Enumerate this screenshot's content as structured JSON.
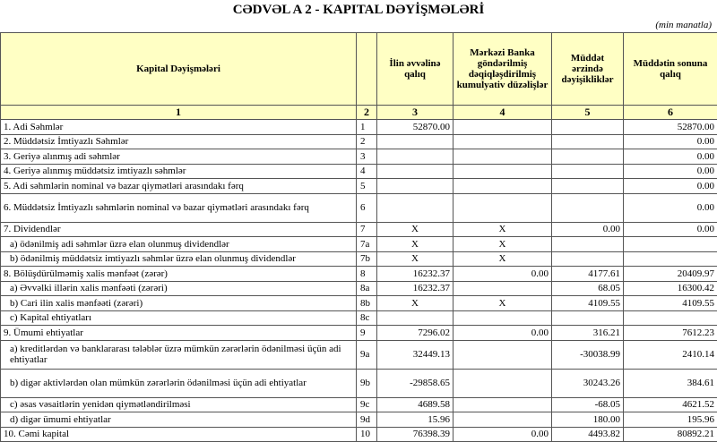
{
  "header": {
    "title": "CƏDVƏL A 2 - KAPITAL DƏYİŞMƏLƏRİ",
    "unit": "(min manatla)"
  },
  "table": {
    "columns": [
      "Kapital Dəyişmələri",
      "",
      "İlin əvvəlinə qalıq",
      "Mərkəzi Banka göndərilmiş dəqiqləşdirilmiş kumulyativ düzəlişlər",
      "Müddət ərzində dəyişikliklər",
      "Müddətin sonuna qalıq"
    ],
    "column_numbers": [
      "1",
      "2",
      "3",
      "4",
      "5",
      "6"
    ],
    "rows": [
      [
        "1. Adi Səhmlər",
        "1",
        "52870.00",
        null,
        null,
        "52870.00"
      ],
      [
        "2. Müddətsiz İmtiyazlı Səhmlər",
        "2",
        null,
        null,
        null,
        "0.00"
      ],
      [
        "3. Geriyə alınmış adi səhmlər",
        "3",
        null,
        null,
        null,
        "0.00"
      ],
      [
        "4. Geriyə alınmış müddətsiz imtiyazlı səhmlər",
        "4",
        null,
        null,
        null,
        "0.00"
      ],
      [
        "5. Adi səhmlərin nominal və bazar qiymətləri arasındakı fərq",
        "5",
        null,
        null,
        null,
        "0.00"
      ],
      [
        "6. Müddətsiz İmtiyazlı səhmlərin nominal və bazar qiymətləri arasındakı fərq",
        "6",
        null,
        null,
        null,
        "0.00"
      ],
      [
        "7. Dividendlər",
        "7",
        "X",
        "X",
        "0.00",
        "0.00"
      ],
      [
        "a) ödənilmiş adi səhmlər üzrə elan olunmuş dividendlər",
        "7a",
        "X",
        "X",
        null,
        null
      ],
      [
        "b) ödənilmiş müddətsiz imtiyazlı səhmlər üzrə elan olunmuş dividendlər",
        "7b",
        "X",
        "X",
        null,
        null
      ],
      [
        "8. Bölüşdürülməmiş xalis mənfəət (zərər)",
        "8",
        "16232.37",
        "0.00",
        "4177.61",
        "20409.97"
      ],
      [
        "a) Əvvəlki illərin xalis mənfəəti (zərəri)",
        "8a",
        "16232.37",
        null,
        "68.05",
        "16300.42"
      ],
      [
        "b) Cari ilin xalis mənfəəti (zərəri)",
        "8b",
        "X",
        "X",
        "4109.55",
        "4109.55"
      ],
      [
        "c) Kapital ehtiyatları",
        "8c",
        null,
        null,
        null,
        null
      ],
      [
        "9. Ümumi ehtiyatlar",
        "9",
        "7296.02",
        "0.00",
        "316.21",
        "7612.23"
      ],
      [
        "a) kreditlərdən və banklararası  tələblər üzrə mümkün zərərlərin ödənilməsi üçün adi ehtiyatlar",
        "9a",
        "32449.13",
        null,
        "-30038.99",
        "2410.14"
      ],
      [
        "b) digər aktivlərdən olan mümkün zərərlərin ödənilməsi üçün adi ehtiyatlar",
        "9b",
        "-29858.65",
        null,
        "30243.26",
        "384.61"
      ],
      [
        "c) əsas vəsaitlərin yenidən qiymətləndirilməsi",
        "9c",
        "4689.58",
        null,
        "-68.05",
        "4621.52"
      ],
      [
        "d) digər ümumi ehtiyatlar",
        "9d",
        "15.96",
        null,
        "180.00",
        "195.96"
      ],
      [
        "10. Cəmi kapital",
        "10",
        "76398.39",
        "0.00",
        "4493.82",
        "80892.21"
      ]
    ]
  }
}
